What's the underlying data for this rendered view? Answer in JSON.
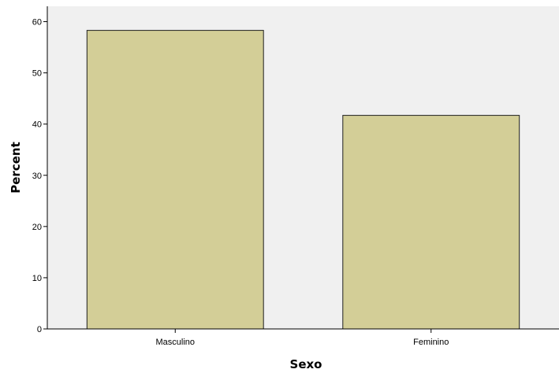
{
  "chart_data": {
    "type": "bar",
    "categories": [
      "Masculino",
      "Feminino"
    ],
    "values": [
      58.3,
      41.7
    ],
    "title": "",
    "xlabel": "Sexo",
    "ylabel": "Percent",
    "ylim": [
      0,
      63
    ],
    "yticks": [
      0,
      10,
      20,
      30,
      40,
      50,
      60
    ],
    "grid": false,
    "legend": "none",
    "colors": {
      "bar_fill": "#d3ce97",
      "bar_stroke": "#1f1f1f",
      "plot_background": "#f0f0f0",
      "axis": "#000000"
    }
  }
}
